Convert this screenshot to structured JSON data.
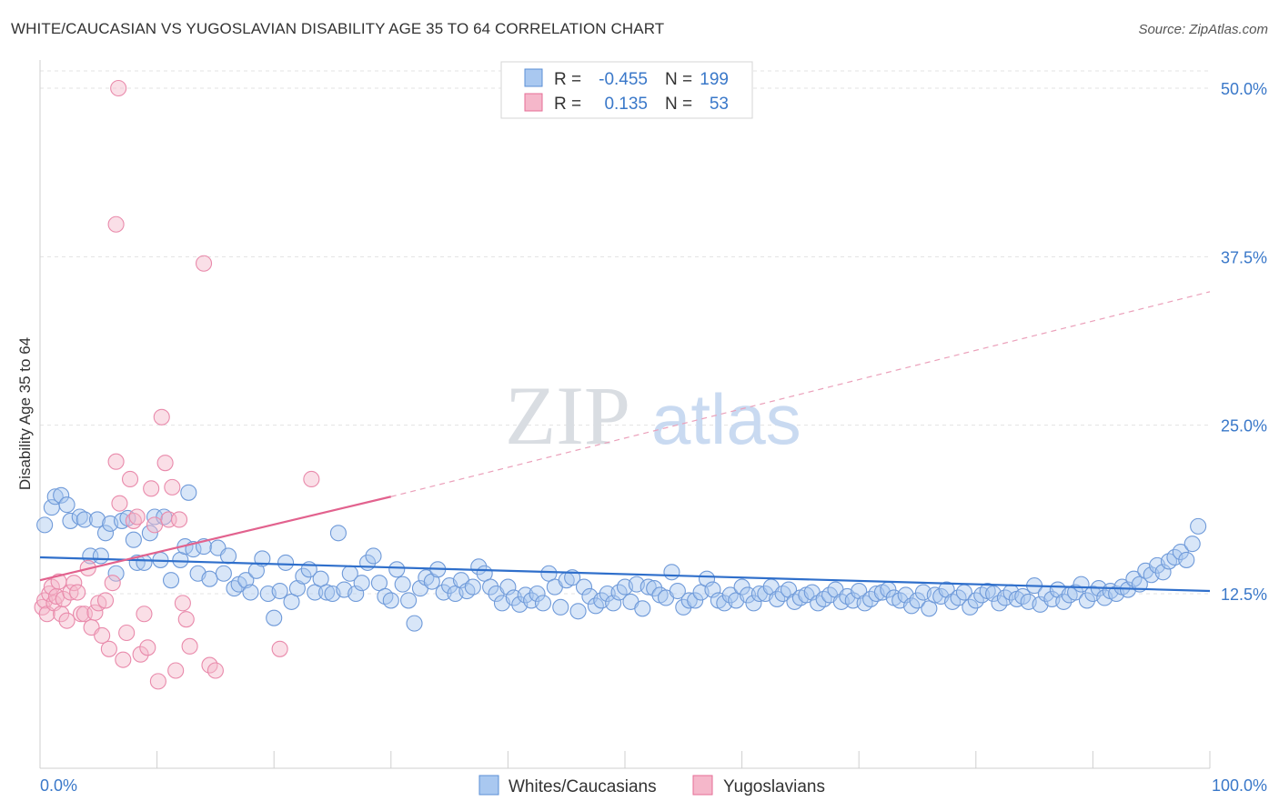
{
  "title": "WHITE/CAUCASIAN VS YUGOSLAVIAN DISABILITY AGE 35 TO 64 CORRELATION CHART",
  "source": "Source: ZipAtlas.com",
  "watermark": {
    "zip": "ZIP",
    "atlas": "atlas"
  },
  "colors": {
    "blue": "#5b8fd6",
    "blue_fill": "#a9c8f0",
    "pink": "#e66d96",
    "pink_fill": "#f5b7ca",
    "tick": "#3a78c9"
  },
  "legend": {
    "rows": [
      {
        "r_label": "R =",
        "r_value": "-0.455",
        "n_label": "N =",
        "n_value": "199"
      },
      {
        "r_label": "R =",
        "r_value": "0.135",
        "n_label": "N =",
        "n_value": "53"
      }
    ]
  },
  "bottom_legend": [
    "Whites/Caucasians",
    "Yugoslavians"
  ],
  "chart_data": {
    "type": "scatter",
    "xlabel": "",
    "ylabel": "Disability Age 35 to 64",
    "xlim": [
      0,
      100
    ],
    "ylim": [
      0,
      52
    ],
    "x_tick_labels": [
      "0.0%",
      "100.0%"
    ],
    "y_ticks": [
      12.5,
      25.0,
      37.5,
      50.0
    ],
    "y_tick_labels": [
      "12.5%",
      "25.0%",
      "37.5%",
      "50.0%"
    ],
    "grid": true,
    "legend_position": "top-center",
    "series": [
      {
        "name": "Whites/Caucasians",
        "color": "#5b8fd6",
        "trend": {
          "x": [
            0,
            100
          ],
          "y": [
            15.2,
            12.7
          ],
          "dashed": false
        },
        "points": [
          [
            0.4,
            17.6
          ],
          [
            1.0,
            18.9
          ],
          [
            1.3,
            19.7
          ],
          [
            1.8,
            19.8
          ],
          [
            2.3,
            19.1
          ],
          [
            2.6,
            17.9
          ],
          [
            3.4,
            18.2
          ],
          [
            3.8,
            18.0
          ],
          [
            4.3,
            15.3
          ],
          [
            4.9,
            18.0
          ],
          [
            5.2,
            15.3
          ],
          [
            5.6,
            17.0
          ],
          [
            6.0,
            17.7
          ],
          [
            6.5,
            14.0
          ],
          [
            7.0,
            17.9
          ],
          [
            7.5,
            18.1
          ],
          [
            8.0,
            16.5
          ],
          [
            8.3,
            14.8
          ],
          [
            8.9,
            14.8
          ],
          [
            9.4,
            17.0
          ],
          [
            9.8,
            18.2
          ],
          [
            10.3,
            15.0
          ],
          [
            10.6,
            18.2
          ],
          [
            11.2,
            13.5
          ],
          [
            12.0,
            15.0
          ],
          [
            12.4,
            16.0
          ],
          [
            12.7,
            20.0
          ],
          [
            13.1,
            15.8
          ],
          [
            13.5,
            14.0
          ],
          [
            14.0,
            16.0
          ],
          [
            14.5,
            13.6
          ],
          [
            15.2,
            15.9
          ],
          [
            15.7,
            14.0
          ],
          [
            16.1,
            15.3
          ],
          [
            16.6,
            12.9
          ],
          [
            17.0,
            13.2
          ],
          [
            17.6,
            13.5
          ],
          [
            18.0,
            12.6
          ],
          [
            18.5,
            14.2
          ],
          [
            19.0,
            15.1
          ],
          [
            19.5,
            12.5
          ],
          [
            20.0,
            10.7
          ],
          [
            20.5,
            12.7
          ],
          [
            21.0,
            14.8
          ],
          [
            21.5,
            11.9
          ],
          [
            22.0,
            12.9
          ],
          [
            22.5,
            13.8
          ],
          [
            23.0,
            14.3
          ],
          [
            23.5,
            12.6
          ],
          [
            24.0,
            13.6
          ],
          [
            24.5,
            12.6
          ],
          [
            25.0,
            12.5
          ],
          [
            25.5,
            17.0
          ],
          [
            26.0,
            12.8
          ],
          [
            26.5,
            14.0
          ],
          [
            27.0,
            12.5
          ],
          [
            27.5,
            13.3
          ],
          [
            28.0,
            14.8
          ],
          [
            28.5,
            15.3
          ],
          [
            29.0,
            13.3
          ],
          [
            29.5,
            12.3
          ],
          [
            30.0,
            12.0
          ],
          [
            30.5,
            14.3
          ],
          [
            31.0,
            13.2
          ],
          [
            31.5,
            12.0
          ],
          [
            32.0,
            10.3
          ],
          [
            32.5,
            12.9
          ],
          [
            33.0,
            13.7
          ],
          [
            33.5,
            13.4
          ],
          [
            34.0,
            14.3
          ],
          [
            34.5,
            12.6
          ],
          [
            35.0,
            13.1
          ],
          [
            35.5,
            12.5
          ],
          [
            36.0,
            13.5
          ],
          [
            36.5,
            12.7
          ],
          [
            37.0,
            13.0
          ],
          [
            37.5,
            14.5
          ],
          [
            38.0,
            14.0
          ],
          [
            38.5,
            13.0
          ],
          [
            39.0,
            12.5
          ],
          [
            39.5,
            11.8
          ],
          [
            40.0,
            13.0
          ],
          [
            40.5,
            12.2
          ],
          [
            41.0,
            11.7
          ],
          [
            41.5,
            12.4
          ],
          [
            42.0,
            12.0
          ],
          [
            42.5,
            12.5
          ],
          [
            43.0,
            11.8
          ],
          [
            43.5,
            14.0
          ],
          [
            44.0,
            13.0
          ],
          [
            44.5,
            11.5
          ],
          [
            45.0,
            13.5
          ],
          [
            45.5,
            13.7
          ],
          [
            46.0,
            11.2
          ],
          [
            46.5,
            13.0
          ],
          [
            47.0,
            12.3
          ],
          [
            47.5,
            11.6
          ],
          [
            48.0,
            12.0
          ],
          [
            48.5,
            12.5
          ],
          [
            49.0,
            11.8
          ],
          [
            49.5,
            12.6
          ],
          [
            50.0,
            13.0
          ],
          [
            50.5,
            11.9
          ],
          [
            51.0,
            13.2
          ],
          [
            51.5,
            11.4
          ],
          [
            52.0,
            13.0
          ],
          [
            52.5,
            12.9
          ],
          [
            53.0,
            12.4
          ],
          [
            53.5,
            12.2
          ],
          [
            54.0,
            14.1
          ],
          [
            54.5,
            12.7
          ],
          [
            55.0,
            11.5
          ],
          [
            55.5,
            12.0
          ],
          [
            56.0,
            12.0
          ],
          [
            56.5,
            12.6
          ],
          [
            57.0,
            13.6
          ],
          [
            57.5,
            12.8
          ],
          [
            58.0,
            12.0
          ],
          [
            58.5,
            11.8
          ],
          [
            59.0,
            12.4
          ],
          [
            59.5,
            12.0
          ],
          [
            60.0,
            13.0
          ],
          [
            60.5,
            12.4
          ],
          [
            61.0,
            11.8
          ],
          [
            61.5,
            12.5
          ],
          [
            62.0,
            12.5
          ],
          [
            62.5,
            13.0
          ],
          [
            63.0,
            12.1
          ],
          [
            63.5,
            12.5
          ],
          [
            64.0,
            12.8
          ],
          [
            64.5,
            11.9
          ],
          [
            65.0,
            12.2
          ],
          [
            65.5,
            12.4
          ],
          [
            66.0,
            12.6
          ],
          [
            66.5,
            11.8
          ],
          [
            67.0,
            12.1
          ],
          [
            67.5,
            12.4
          ],
          [
            68.0,
            12.8
          ],
          [
            68.5,
            11.9
          ],
          [
            69.0,
            12.3
          ],
          [
            69.5,
            12.0
          ],
          [
            70.0,
            12.7
          ],
          [
            70.5,
            11.8
          ],
          [
            71.0,
            12.1
          ],
          [
            71.5,
            12.5
          ],
          [
            72.0,
            12.6
          ],
          [
            72.5,
            12.8
          ],
          [
            73.0,
            12.2
          ],
          [
            73.5,
            12.0
          ],
          [
            74.0,
            12.4
          ],
          [
            74.5,
            11.6
          ],
          [
            75.0,
            12.0
          ],
          [
            75.5,
            12.6
          ],
          [
            76.0,
            11.4
          ],
          [
            76.5,
            12.4
          ],
          [
            77.0,
            12.3
          ],
          [
            77.5,
            12.8
          ],
          [
            78.0,
            11.9
          ],
          [
            78.5,
            12.2
          ],
          [
            79.0,
            12.6
          ],
          [
            79.5,
            11.5
          ],
          [
            80.0,
            12.0
          ],
          [
            80.5,
            12.4
          ],
          [
            81.0,
            12.7
          ],
          [
            81.5,
            12.5
          ],
          [
            82.0,
            11.8
          ],
          [
            82.5,
            12.2
          ],
          [
            83.0,
            12.6
          ],
          [
            83.5,
            12.1
          ],
          [
            84.0,
            12.3
          ],
          [
            84.5,
            11.9
          ],
          [
            85.0,
            13.1
          ],
          [
            85.5,
            11.7
          ],
          [
            86.0,
            12.5
          ],
          [
            86.5,
            12.1
          ],
          [
            87.0,
            12.8
          ],
          [
            87.5,
            11.9
          ],
          [
            88.0,
            12.4
          ],
          [
            88.5,
            12.6
          ],
          [
            89.0,
            13.2
          ],
          [
            89.5,
            12.0
          ],
          [
            90.0,
            12.5
          ],
          [
            90.5,
            12.9
          ],
          [
            91.0,
            12.2
          ],
          [
            91.5,
            12.7
          ],
          [
            92.0,
            12.5
          ],
          [
            92.5,
            13.0
          ],
          [
            93.0,
            12.8
          ],
          [
            93.5,
            13.6
          ],
          [
            94.0,
            13.2
          ],
          [
            94.5,
            14.2
          ],
          [
            95.0,
            13.9
          ],
          [
            95.5,
            14.6
          ],
          [
            96.0,
            14.1
          ],
          [
            96.5,
            14.9
          ],
          [
            97.0,
            15.2
          ],
          [
            97.5,
            15.6
          ],
          [
            98.0,
            15.0
          ],
          [
            98.5,
            16.2
          ],
          [
            99.0,
            17.5
          ]
        ]
      },
      {
        "name": "Yugoslavians",
        "color": "#e66d96",
        "trend": {
          "x": [
            0,
            30,
            100
          ],
          "y": [
            13.5,
            19.7,
            34.9
          ],
          "dashed_after": 30
        },
        "points": [
          [
            0.2,
            11.5
          ],
          [
            0.4,
            12.0
          ],
          [
            0.6,
            11.0
          ],
          [
            0.8,
            12.5
          ],
          [
            1.0,
            13.0
          ],
          [
            1.2,
            11.8
          ],
          [
            1.4,
            12.3
          ],
          [
            1.6,
            13.4
          ],
          [
            1.8,
            11.0
          ],
          [
            2.0,
            12.1
          ],
          [
            2.3,
            10.5
          ],
          [
            2.6,
            12.6
          ],
          [
            2.9,
            13.3
          ],
          [
            3.2,
            12.6
          ],
          [
            3.5,
            11.0
          ],
          [
            3.8,
            11.0
          ],
          [
            4.1,
            14.4
          ],
          [
            4.4,
            10.0
          ],
          [
            4.7,
            11.1
          ],
          [
            5.0,
            11.8
          ],
          [
            5.3,
            9.4
          ],
          [
            5.6,
            12.0
          ],
          [
            5.9,
            8.4
          ],
          [
            6.2,
            13.3
          ],
          [
            6.5,
            22.3
          ],
          [
            6.8,
            19.2
          ],
          [
            7.1,
            7.6
          ],
          [
            7.4,
            9.6
          ],
          [
            7.7,
            21.0
          ],
          [
            8.0,
            17.9
          ],
          [
            8.3,
            18.2
          ],
          [
            8.6,
            8.0
          ],
          [
            8.9,
            11.0
          ],
          [
            9.2,
            8.5
          ],
          [
            9.5,
            20.3
          ],
          [
            9.8,
            17.6
          ],
          [
            10.1,
            6.0
          ],
          [
            10.4,
            25.6
          ],
          [
            10.7,
            22.2
          ],
          [
            11.0,
            18.0
          ],
          [
            11.3,
            20.4
          ],
          [
            11.6,
            6.8
          ],
          [
            11.9,
            18.0
          ],
          [
            12.2,
            11.8
          ],
          [
            12.5,
            10.6
          ],
          [
            12.8,
            8.6
          ],
          [
            6.5,
            39.9
          ],
          [
            6.7,
            50.0
          ],
          [
            14.0,
            37.0
          ],
          [
            14.5,
            7.2
          ],
          [
            15.0,
            6.8
          ],
          [
            20.5,
            8.4
          ],
          [
            23.2,
            21.0
          ]
        ]
      }
    ]
  }
}
